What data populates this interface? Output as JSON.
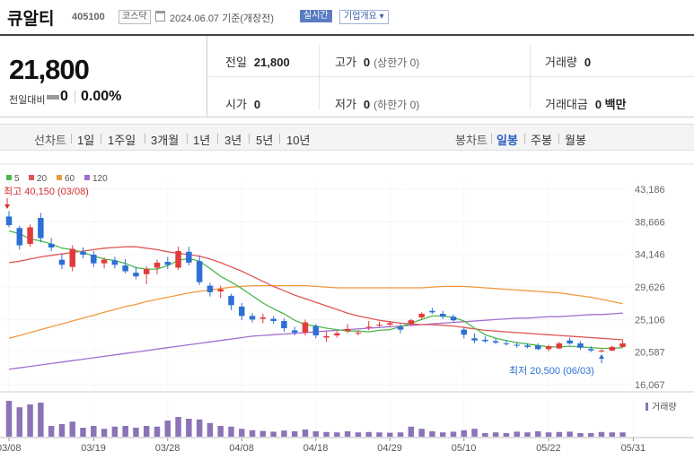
{
  "header": {
    "name": "큐알티",
    "code": "405100",
    "market": "코스닥",
    "date": "2024.06.07 기준(개장전)",
    "realtime": "실시간",
    "company": "기업개요 ▾"
  },
  "quote": {
    "price": "21,800",
    "change_label": "전일대비",
    "change": "0",
    "change_pct": "0.00%",
    "prev_label": "전일",
    "prev": "21,800",
    "high_label": "고가",
    "high": "0",
    "upper_limit": "(상한가 0)",
    "volume_label": "거래량",
    "volume": "0",
    "open_label": "시가",
    "open": "0",
    "low_label": "저가",
    "low": "0",
    "lower_limit": "(하한가 0)",
    "value_label": "거래대금",
    "value": "0 백만"
  },
  "periods": {
    "line_label": "선차트",
    "line_items": [
      "1일",
      "1주일",
      "3개월",
      "1년",
      "3년",
      "5년",
      "10년"
    ],
    "candle_label": "봉차트",
    "candle_items": [
      "일봉",
      "주봉",
      "월봉"
    ],
    "active": "일봉"
  },
  "chart_data": {
    "type": "candlestick",
    "ma_legend": [
      {
        "name": "5",
        "color": "#4cb84c"
      },
      {
        "name": "20",
        "color": "#e05656"
      },
      {
        "name": "60",
        "color": "#f09a3c"
      },
      {
        "name": "120",
        "color": "#a26ed0"
      }
    ],
    "y_ticks": [
      "43,186",
      "38,666",
      "34,146",
      "29,626",
      "25,106",
      "20,587",
      "16,067"
    ],
    "y_range": [
      16067,
      43186
    ],
    "x_ticks": [
      "03/08",
      "03/19",
      "03/28",
      "04/08",
      "04/18",
      "04/29",
      "05/10",
      "05/22",
      "05/31"
    ],
    "high_annotation": "최고 40,150 (03/08)",
    "low_annotation": "최저 20,500 (06/03)",
    "volume_label": "거래량",
    "up_color": "#e23a3a",
    "down_color": "#2d6fd4",
    "candles": [
      [
        39400,
        40150,
        37900,
        38200,
        1.0
      ],
      [
        37800,
        38100,
        34800,
        35400,
        0.82
      ],
      [
        35600,
        38300,
        35200,
        37900,
        0.9
      ],
      [
        39200,
        39900,
        35800,
        36400,
        0.95
      ],
      [
        35600,
        36400,
        34600,
        35100,
        0.3
      ],
      [
        33400,
        34200,
        32100,
        32700,
        0.35
      ],
      [
        32400,
        35400,
        31800,
        34900,
        0.42
      ],
      [
        34500,
        35100,
        33600,
        34100,
        0.25
      ],
      [
        34100,
        34600,
        32400,
        32900,
        0.3
      ],
      [
        32900,
        33700,
        32200,
        33400,
        0.22
      ],
      [
        33300,
        33800,
        32200,
        32700,
        0.28
      ],
      [
        32600,
        33500,
        31500,
        31800,
        0.3
      ],
      [
        31600,
        32400,
        30700,
        31100,
        0.25
      ],
      [
        31400,
        32500,
        30000,
        32100,
        0.3
      ],
      [
        32300,
        33400,
        31400,
        33000,
        0.28
      ],
      [
        33100,
        33800,
        32100,
        32700,
        0.45
      ],
      [
        32300,
        35200,
        32000,
        34600,
        0.55
      ],
      [
        34500,
        35200,
        32600,
        33000,
        0.5
      ],
      [
        33200,
        34000,
        29900,
        30300,
        0.48
      ],
      [
        29800,
        30200,
        28300,
        28900,
        0.38
      ],
      [
        29000,
        29800,
        28100,
        29300,
        0.3
      ],
      [
        28400,
        28700,
        26400,
        27100,
        0.28
      ],
      [
        26900,
        27400,
        25000,
        25600,
        0.22
      ],
      [
        25600,
        26000,
        24700,
        25100,
        0.18
      ],
      [
        25200,
        25900,
        24600,
        25400,
        0.16
      ],
      [
        25200,
        25600,
        24500,
        24900,
        0.14
      ],
      [
        24900,
        25300,
        23400,
        23900,
        0.17
      ],
      [
        23600,
        24100,
        22900,
        23300,
        0.15
      ],
      [
        23300,
        25100,
        22900,
        24700,
        0.2
      ],
      [
        24200,
        24500,
        22500,
        22900,
        0.15
      ],
      [
        22600,
        23400,
        22000,
        22800,
        0.13
      ],
      [
        22900,
        23500,
        22600,
        23200,
        0.12
      ],
      [
        23500,
        24500,
        23200,
        23800,
        0.15
      ],
      [
        23300,
        23600,
        22900,
        23300,
        0.12
      ],
      [
        24000,
        24900,
        23600,
        24100,
        0.13
      ],
      [
        24300,
        24800,
        24100,
        24400,
        0.12
      ],
      [
        24400,
        24900,
        24100,
        24600,
        0.11
      ],
      [
        24100,
        24500,
        23200,
        23700,
        0.12
      ],
      [
        24500,
        25200,
        24200,
        25000,
        0.28
      ],
      [
        25400,
        26100,
        25100,
        25900,
        0.22
      ],
      [
        26300,
        26700,
        25900,
        26100,
        0.15
      ],
      [
        25900,
        26300,
        25200,
        25500,
        0.12
      ],
      [
        25500,
        25800,
        24700,
        25000,
        0.14
      ],
      [
        23700,
        24000,
        22500,
        23000,
        0.18
      ],
      [
        22500,
        23200,
        21800,
        22200,
        0.22
      ],
      [
        22300,
        22800,
        21900,
        22100,
        0.1
      ],
      [
        22100,
        22500,
        21700,
        21900,
        0.12
      ],
      [
        21800,
        22300,
        21500,
        21700,
        0.1
      ],
      [
        21600,
        22000,
        21200,
        21500,
        0.14
      ],
      [
        21500,
        21800,
        21100,
        21300,
        0.12
      ],
      [
        21500,
        21800,
        20800,
        21000,
        0.15
      ],
      [
        21000,
        21600,
        20700,
        21400,
        0.12
      ],
      [
        21100,
        22000,
        21000,
        21800,
        0.13
      ],
      [
        22200,
        22600,
        21600,
        21800,
        0.14
      ],
      [
        21800,
        22100,
        20900,
        21200,
        0.1
      ],
      [
        21000,
        21400,
        20600,
        20800,
        0.1
      ],
      [
        20700,
        21000,
        20500,
        20800,
        0.13
      ],
      [
        20800,
        21500,
        20700,
        21300,
        0.12
      ],
      [
        21300,
        22300,
        21200,
        21800,
        0.12
      ]
    ],
    "ma5": [
      37400,
      37000,
      36300,
      36000,
      35600,
      35000,
      34800,
      34400,
      33900,
      33500,
      33300,
      32900,
      32300,
      32100,
      32100,
      32600,
      33300,
      33600,
      33200,
      32200,
      31100,
      30300,
      29400,
      28400,
      27400,
      26600,
      25900,
      25000,
      24400,
      24200,
      23900,
      23700,
      23500,
      23500,
      23400,
      23600,
      23700,
      24100,
      24600,
      25100,
      25600,
      25600,
      25400,
      24900,
      23900,
      23000,
      22500,
      22200,
      21900,
      21700,
      21500,
      21300,
      21300,
      21400,
      21300,
      21200,
      21100,
      21100,
      21200
    ],
    "ma20": [
      33000,
      33200,
      33500,
      33800,
      34000,
      34200,
      34400,
      34600,
      34800,
      35000,
      35100,
      35200,
      35200,
      35000,
      34800,
      34500,
      34300,
      34100,
      33900,
      33500,
      33000,
      32400,
      31800,
      31100,
      30400,
      29700,
      29100,
      28500,
      28000,
      27500,
      27000,
      26500,
      26000,
      25600,
      25300,
      25000,
      24800,
      24600,
      24500,
      24400,
      24400,
      24300,
      24200,
      24000,
      23800,
      23600,
      23500,
      23400,
      23300,
      23200,
      23100,
      23000,
      22900,
      22800,
      22700,
      22600,
      22500,
      22400,
      22300
    ],
    "ma60": [
      22500,
      22900,
      23300,
      23700,
      24100,
      24500,
      24900,
      25300,
      25700,
      26100,
      26500,
      26900,
      27200,
      27600,
      27900,
      28200,
      28500,
      28800,
      29000,
      29200,
      29400,
      29600,
      29700,
      29800,
      29800,
      29800,
      29800,
      29800,
      29800,
      29700,
      29600,
      29500,
      29500,
      29500,
      29500,
      29500,
      29500,
      29500,
      29500,
      29500,
      29600,
      29700,
      29700,
      29700,
      29600,
      29500,
      29400,
      29300,
      29200,
      29100,
      29000,
      28900,
      28800,
      28600,
      28400,
      28200,
      27900,
      27600,
      27300
    ],
    "ma120": [
      18200,
      18400,
      18600,
      18800,
      19000,
      19200,
      19400,
      19600,
      19800,
      20000,
      20200,
      20400,
      20600,
      20800,
      21000,
      21200,
      21400,
      21600,
      21800,
      22000,
      22200,
      22400,
      22600,
      22800,
      22900,
      23000,
      23100,
      23200,
      23300,
      23400,
      23500,
      23600,
      23700,
      23800,
      23900,
      24000,
      24100,
      24200,
      24300,
      24400,
      24500,
      24600,
      24700,
      24800,
      24900,
      25000,
      25100,
      25200,
      25300,
      25300,
      25400,
      25500,
      25500,
      25600,
      25700,
      25800,
      25800,
      25900,
      26000
    ]
  }
}
